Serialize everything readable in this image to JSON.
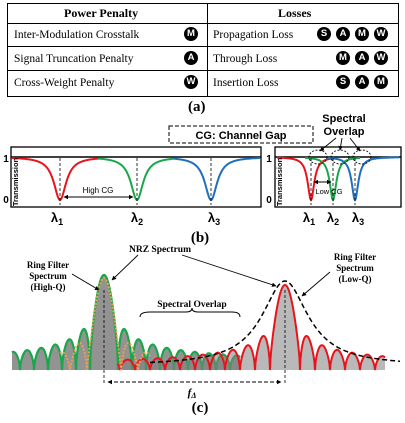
{
  "table": {
    "headers": {
      "left": "Power Penalty",
      "right": "Losses"
    },
    "rows": [
      {
        "left_label": "Inter-Modulation Crosstalk",
        "left_badges": [
          "M"
        ],
        "right_label": "Propagation Loss",
        "right_badges": [
          "S",
          "A",
          "M",
          "W"
        ]
      },
      {
        "left_label": "Signal Truncation Penalty",
        "left_badges": [
          "A"
        ],
        "right_label": "Through Loss",
        "right_badges": [
          "M",
          "A",
          "W"
        ]
      },
      {
        "left_label": "Cross-Weight Penalty",
        "left_badges": [
          "W"
        ],
        "right_label": "Insertion Loss",
        "right_badges": [
          "S",
          "A",
          "M"
        ]
      }
    ]
  },
  "labels": {
    "a": "(a)",
    "b": "(b)",
    "c": "(c)"
  },
  "panel_b": {
    "cg_box": "CG: Channel Gap",
    "spectral_overlap_line1": "Spectral",
    "spectral_overlap_line2": "Overlap",
    "left": {
      "y_top": "1",
      "y_bottom": "0",
      "ylabel": "Transmission",
      "gap_label": "High CG",
      "lambdas": [
        "λ",
        "λ",
        "λ"
      ],
      "subs": [
        "1",
        "2",
        "3"
      ]
    },
    "right": {
      "y_top": "1",
      "y_bottom": "0",
      "ylabel": "Transmission",
      "gap_label": "Low CG",
      "lambdas": [
        "λ",
        "λ",
        "λ"
      ],
      "subs": [
        "1",
        "2",
        "3"
      ]
    },
    "colors": {
      "ch1": "#e8141c",
      "ch2": "#1aa64a",
      "ch3": "#1f6fc0"
    }
  },
  "panel_c": {
    "nrz": "NRZ Spectrum",
    "high_q_line1": "Ring Filter",
    "high_q_line2": "Spectrum",
    "high_q_line3": "(High-Q)",
    "low_q_line1": "Ring Filter",
    "low_q_line2": "Spectrum",
    "low_q_line3": "(Low-Q)",
    "overlap": "Spectral Overlap",
    "f_delta": "f",
    "f_delta_sub": "Δ",
    "colors": {
      "high_q": "#1aa64a",
      "low_q": "#e8141c",
      "nrz": "#f0a050",
      "fill": "#808080"
    }
  }
}
